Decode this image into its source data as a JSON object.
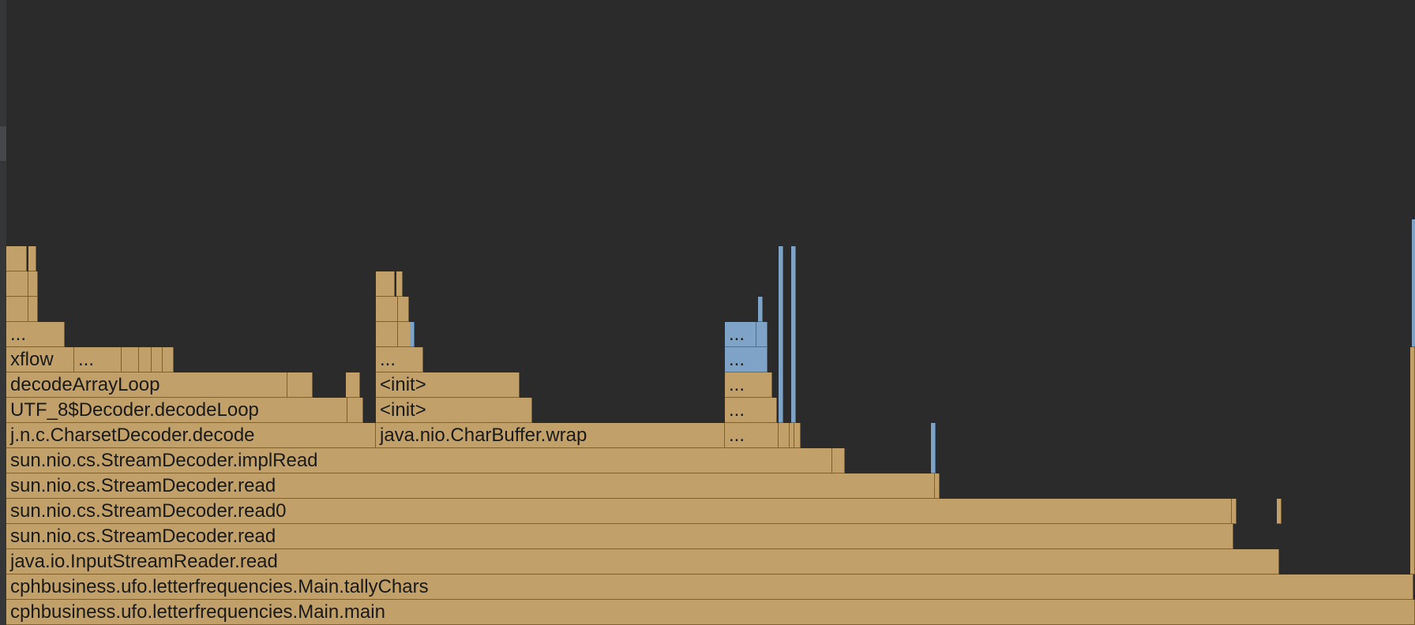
{
  "flame_graph": {
    "colors": {
      "background": "#2b2b2b",
      "frame": "#c2a06a",
      "frame_highlight": "#7ea3c6"
    },
    "frames": [
      {
        "label": "cphbusiness.ufo.letterfrequencies.Main.main"
      },
      {
        "label": "cphbusiness.ufo.letterfrequencies.Main.tallyChars"
      },
      {
        "label": "java.io.InputStreamReader.read"
      },
      {
        "label": "sun.nio.cs.StreamDecoder.read"
      },
      {
        "label": "sun.nio.cs.StreamDecoder.read0"
      },
      {
        "label": "sun.nio.cs.StreamDecoder.read"
      },
      {
        "label": "sun.nio.cs.StreamDecoder.implRead"
      },
      {
        "label": "j.n.c.CharsetDecoder.decode"
      },
      {
        "label": "java.nio.CharBuffer.wrap"
      },
      {
        "label": "UTF_8$Decoder.decodeLoop"
      },
      {
        "label": "decodeArrayLoop"
      },
      {
        "label": "xflow"
      },
      {
        "label": "..."
      },
      {
        "label": "..."
      },
      {
        "label": "<init>"
      },
      {
        "label": "<init>"
      },
      {
        "label": "..."
      },
      {
        "label": "..."
      },
      {
        "label": "..."
      },
      {
        "label": "..."
      },
      {
        "label": "..."
      },
      {
        "label": "..."
      }
    ]
  }
}
